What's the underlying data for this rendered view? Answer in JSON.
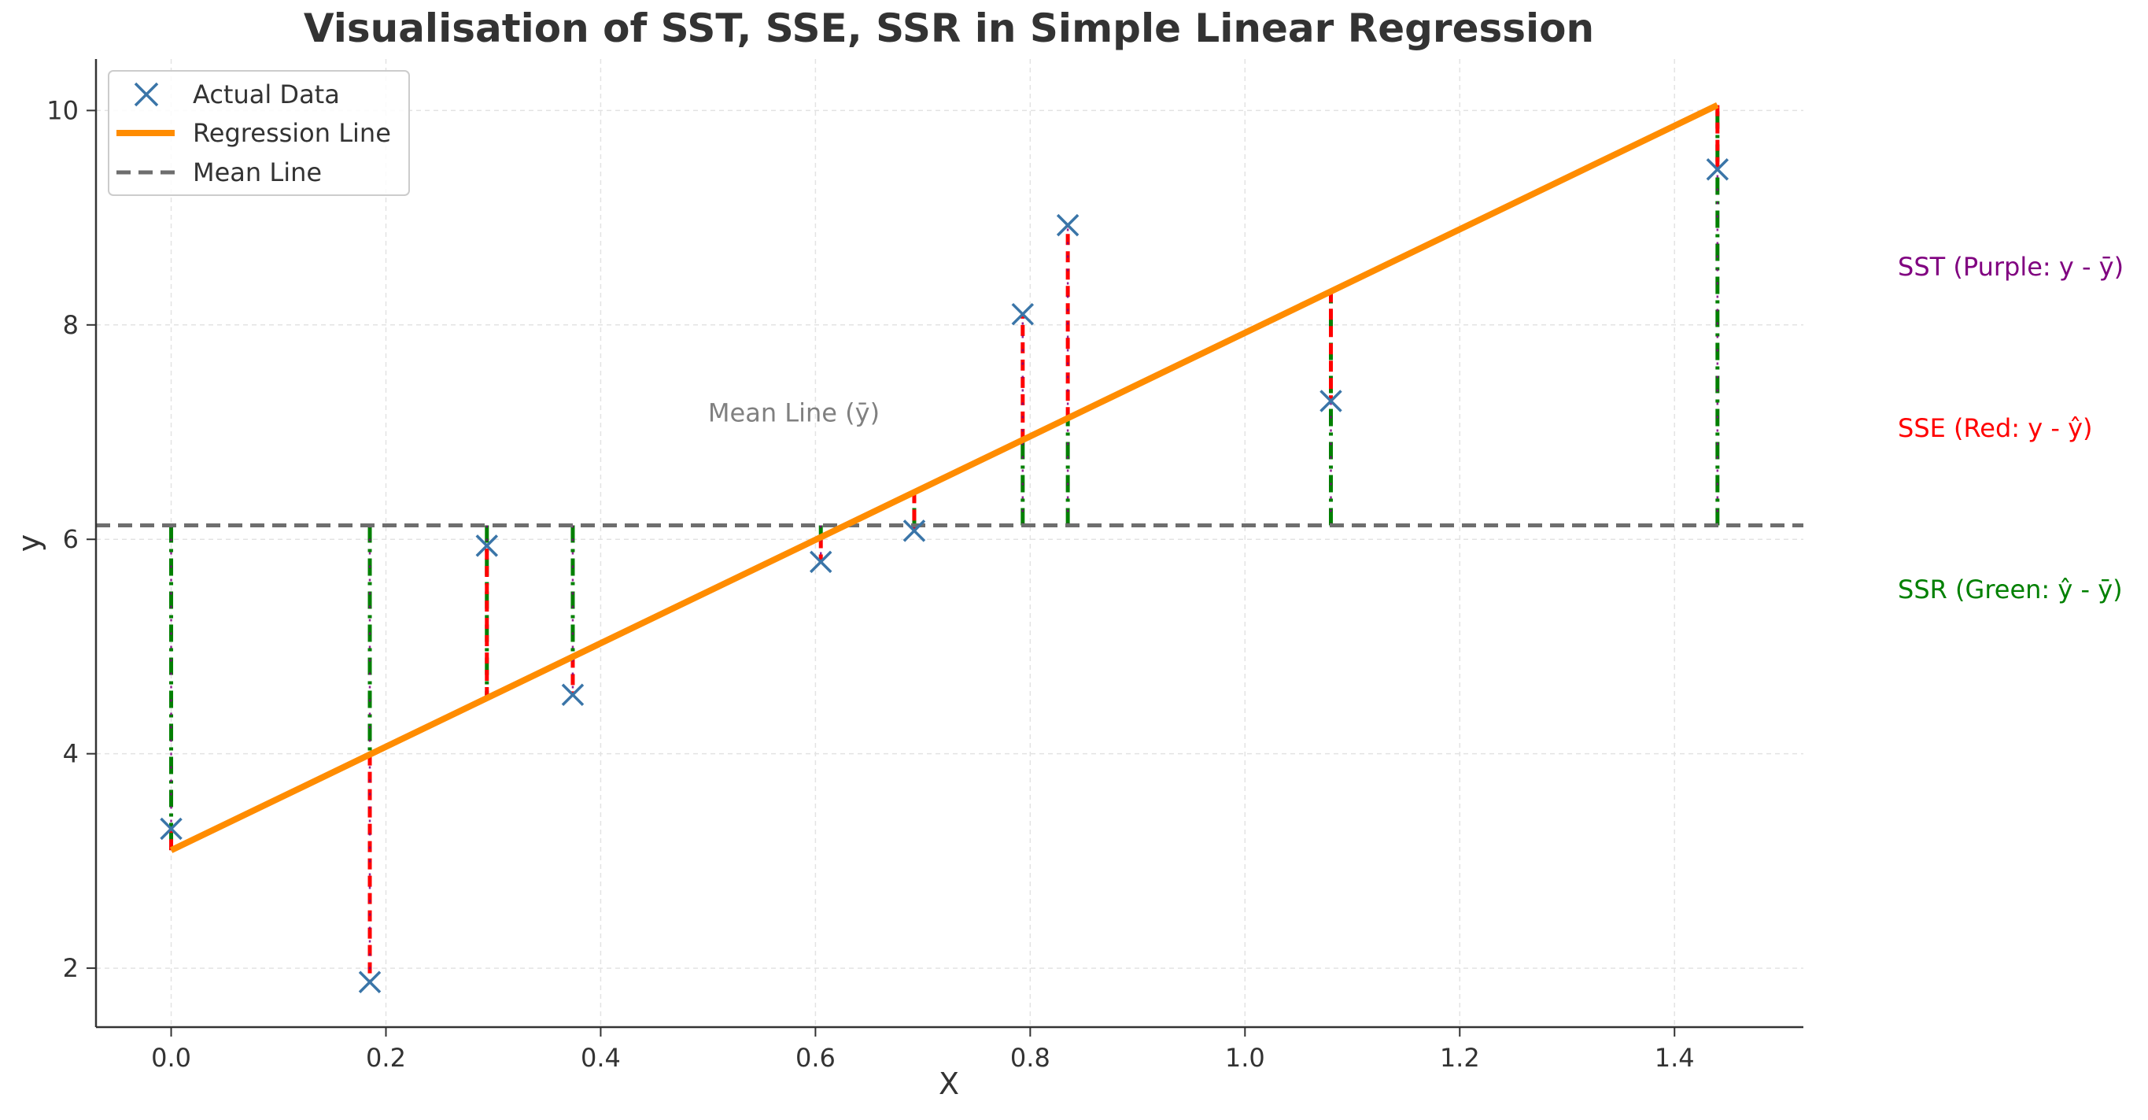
{
  "chart_data": {
    "type": "scatter",
    "title": "Visualisation of SST, SSE, SSR in Simple Linear Regression",
    "xlabel": "X",
    "ylabel": "y",
    "xlim": [
      -0.07,
      1.52
    ],
    "ylim": [
      1.45,
      10.48
    ],
    "xticks": [
      0.0,
      0.2,
      0.4,
      0.6,
      0.8,
      1.0,
      1.2,
      1.4
    ],
    "xtick_labels": [
      "0.0",
      "0.2",
      "0.4",
      "0.6",
      "0.8",
      "1.0",
      "1.2",
      "1.4"
    ],
    "yticks": [
      2,
      4,
      6,
      8,
      10
    ],
    "ytick_labels": [
      "2",
      "4",
      "6",
      "8",
      "10"
    ],
    "grid": true,
    "legend_position": "top-left",
    "legend": [
      {
        "label": "Actual Data",
        "kind": "marker"
      },
      {
        "label": "Regression Line",
        "kind": "line"
      },
      {
        "label": "Mean Line",
        "kind": "dashed"
      }
    ],
    "series": [
      {
        "name": "Actual Data",
        "type": "scatter",
        "x": [
          0.0,
          0.185,
          0.294,
          0.374,
          0.605,
          0.692,
          0.793,
          0.835,
          1.08,
          1.44
        ],
        "y": [
          3.3,
          1.87,
          5.94,
          4.55,
          5.79,
          6.08,
          8.1,
          8.93,
          7.29,
          9.45
        ]
      },
      {
        "name": "Regression Line",
        "type": "line",
        "x": [
          0.0,
          1.44
        ],
        "y": [
          3.1,
          10.05
        ]
      },
      {
        "name": "Mean Line",
        "type": "hline",
        "y": 6.13
      }
    ],
    "annotations": {
      "mean_label": {
        "text": "Mean Line (ȳ)",
        "x": 0.5,
        "y": 7.1
      },
      "sst": "SST (Purple: y - ȳ)",
      "sse": "SSE (Red: y - ŷ)",
      "ssr": "SSR (Green: ŷ - ȳ)"
    },
    "colors": {
      "points": "#3a75a8",
      "regression": "#ff8c00",
      "mean": "#6e6e6e",
      "sst": "#800080",
      "sse": "#ff0000",
      "ssr": "#008000",
      "text": "#333333",
      "mean_label": "#808080"
    }
  }
}
